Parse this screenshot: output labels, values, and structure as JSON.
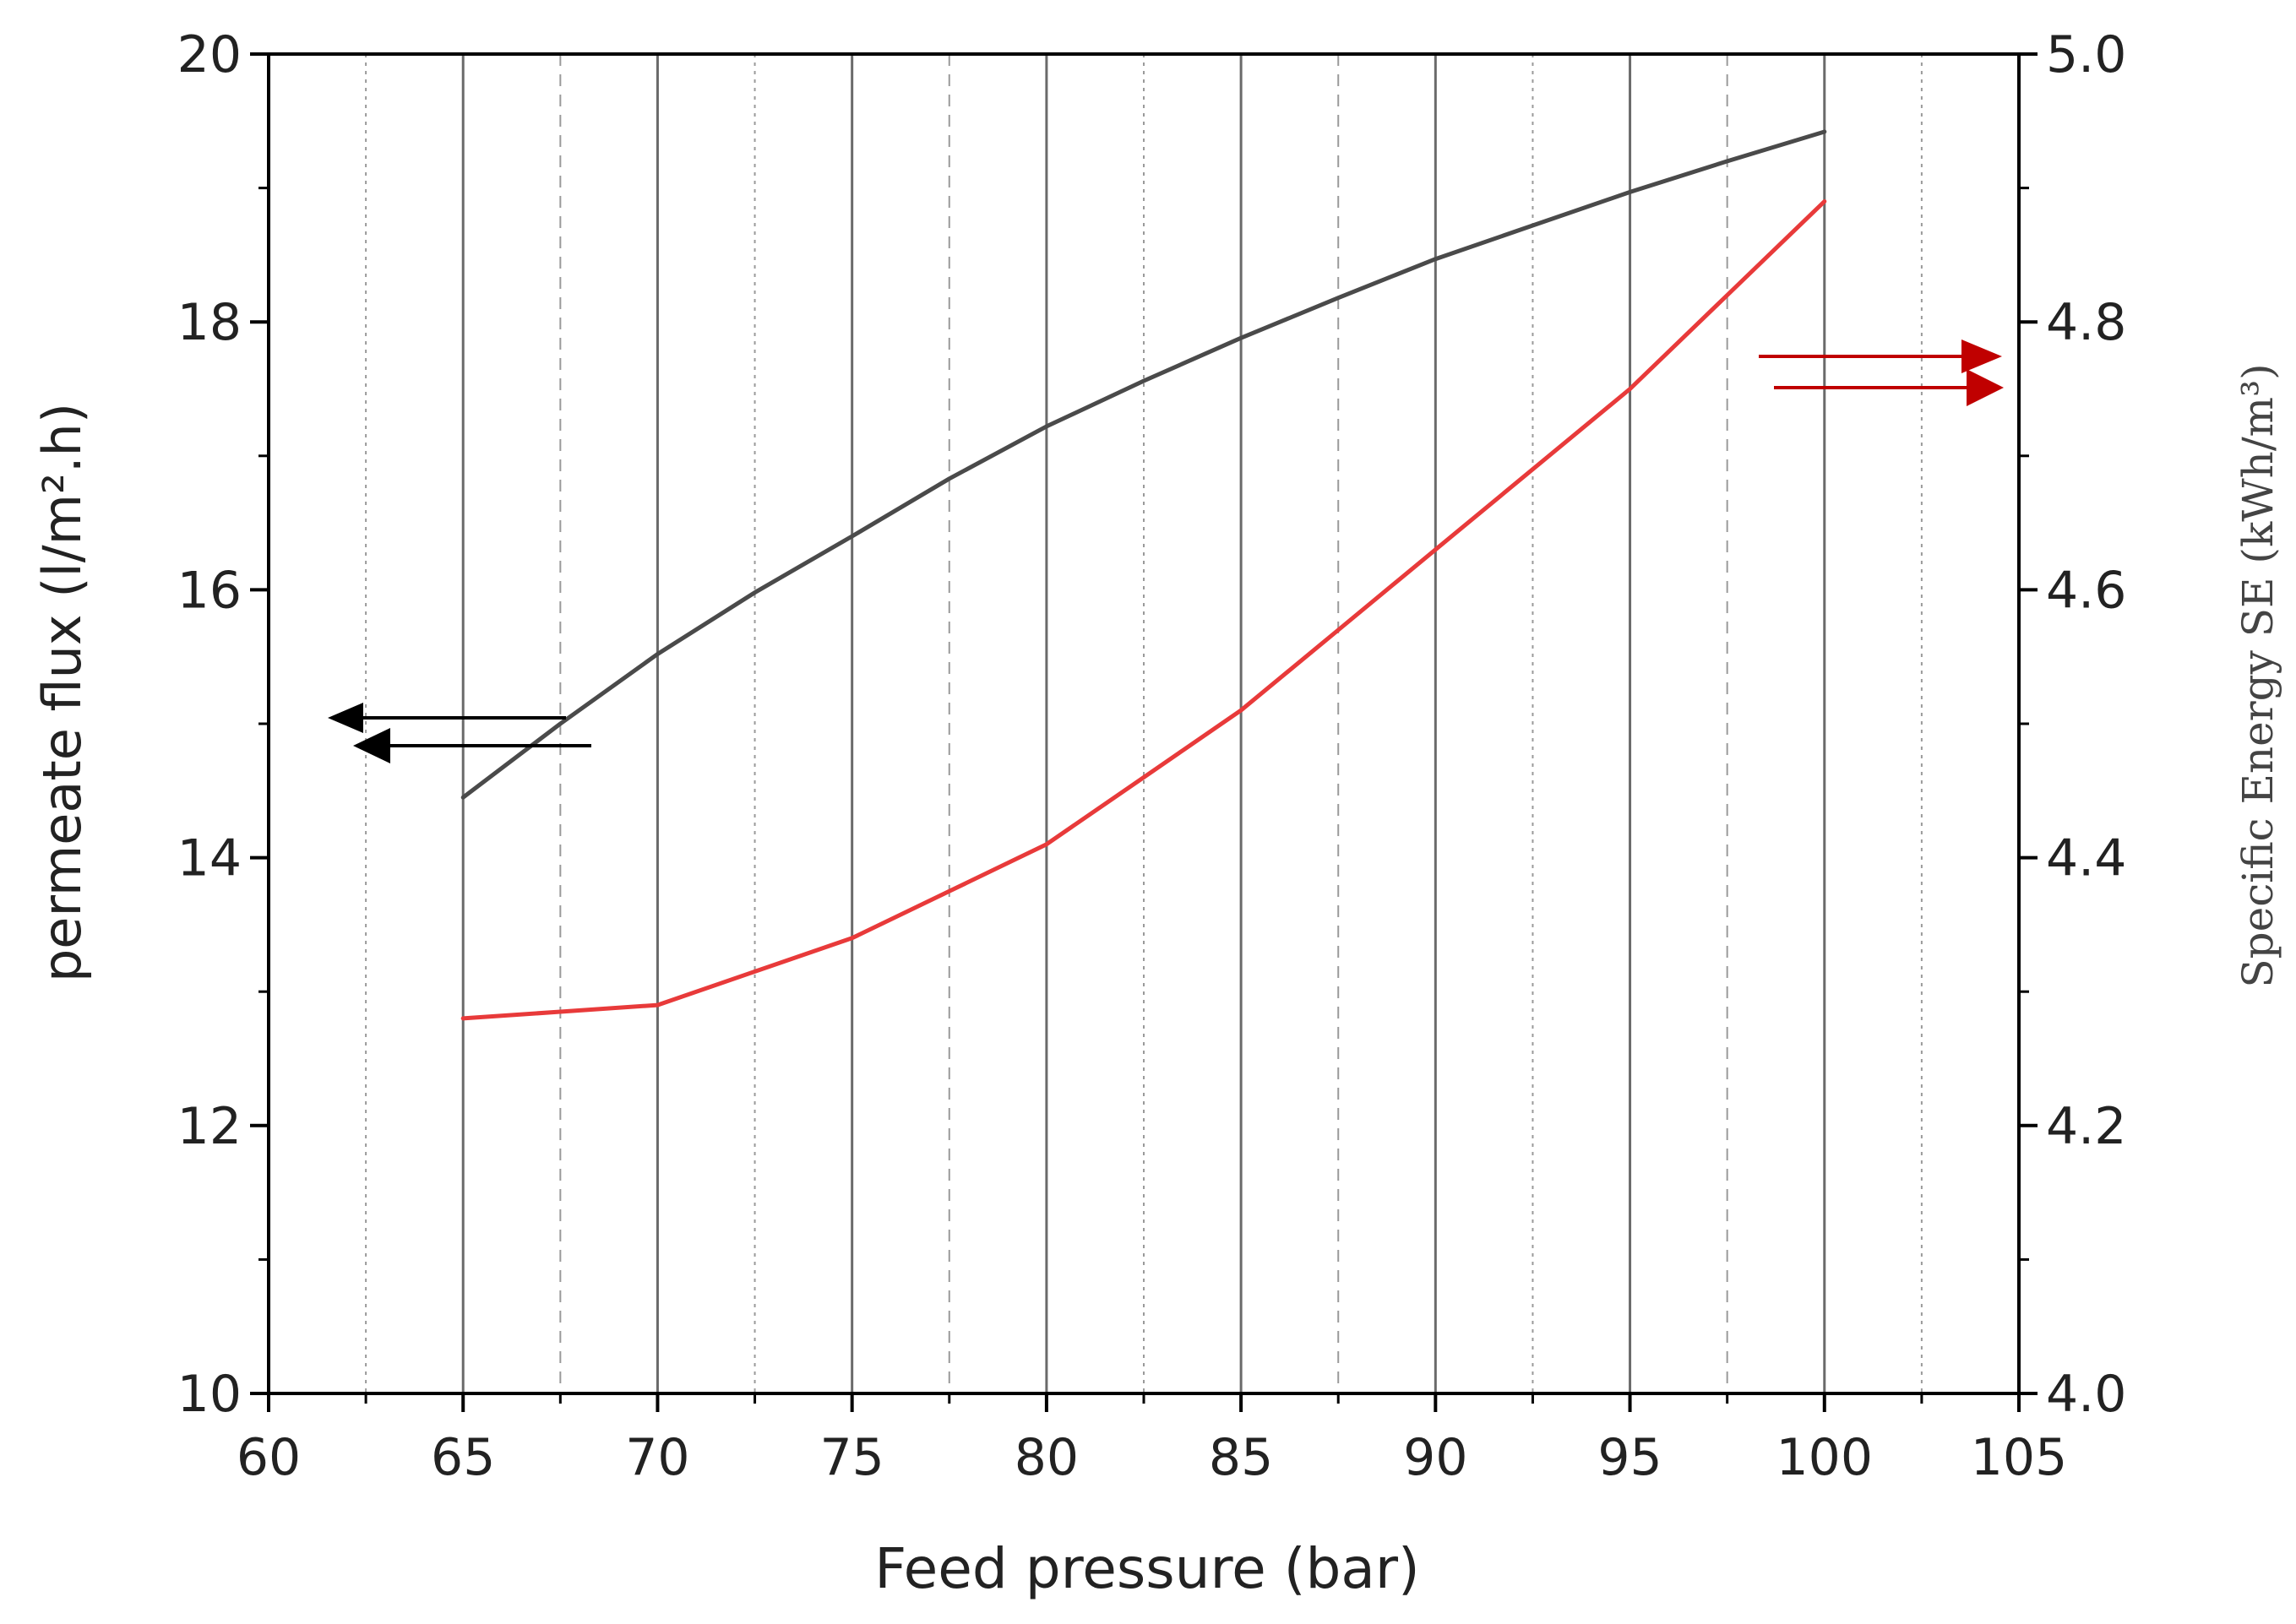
{
  "chart_data": {
    "type": "line",
    "xlabel": "Feed pressure (bar)",
    "ylabel_left": "permeate flux (l/m².h)",
    "ylabel_right": "Specific Energy SE (kWh/m³)",
    "xlim": [
      60,
      105
    ],
    "ylim_left": [
      10,
      20
    ],
    "ylim_right": [
      4.0,
      5.0
    ],
    "x_ticks": [
      "60",
      "65",
      "70",
      "75",
      "80",
      "85",
      "90",
      "95",
      "100",
      "105"
    ],
    "y_ticks_left": [
      "10",
      "12",
      "14",
      "16",
      "18",
      "20"
    ],
    "y_ticks_right": [
      "4.0",
      "4.2",
      "4.4",
      "4.6",
      "4.8",
      "5.0"
    ],
    "grid": "vertical",
    "series": [
      {
        "name": "permeate flux",
        "axis": "left",
        "color": "#4a4a4a",
        "x": [
          65,
          67.5,
          70,
          72.5,
          75,
          77.5,
          80,
          82.5,
          85,
          87.5,
          90,
          92.5,
          95,
          97.5,
          100
        ],
        "values": [
          14.45,
          15.0,
          15.52,
          15.98,
          16.4,
          16.83,
          17.22,
          17.56,
          17.88,
          18.18,
          18.47,
          18.72,
          18.97,
          19.2,
          19.42
        ]
      },
      {
        "name": "Specific Energy SE",
        "axis": "right",
        "color": "#e83a3a",
        "x": [
          65,
          67.5,
          70,
          72.5,
          75,
          77.5,
          80,
          82.5,
          85,
          87.5,
          90,
          92.5,
          95,
          97.5,
          100
        ],
        "values": [
          4.28,
          4.285,
          4.29,
          4.315,
          4.34,
          4.375,
          4.41,
          4.46,
          4.51,
          4.57,
          4.63,
          4.69,
          4.75,
          4.82,
          4.89
        ]
      }
    ],
    "annotations": [
      {
        "type": "arrow",
        "direction": "left",
        "points_to": "left axis",
        "color": "#000000"
      },
      {
        "type": "arrow",
        "direction": "right",
        "points_to": "right axis",
        "color": "#c00000"
      }
    ]
  }
}
